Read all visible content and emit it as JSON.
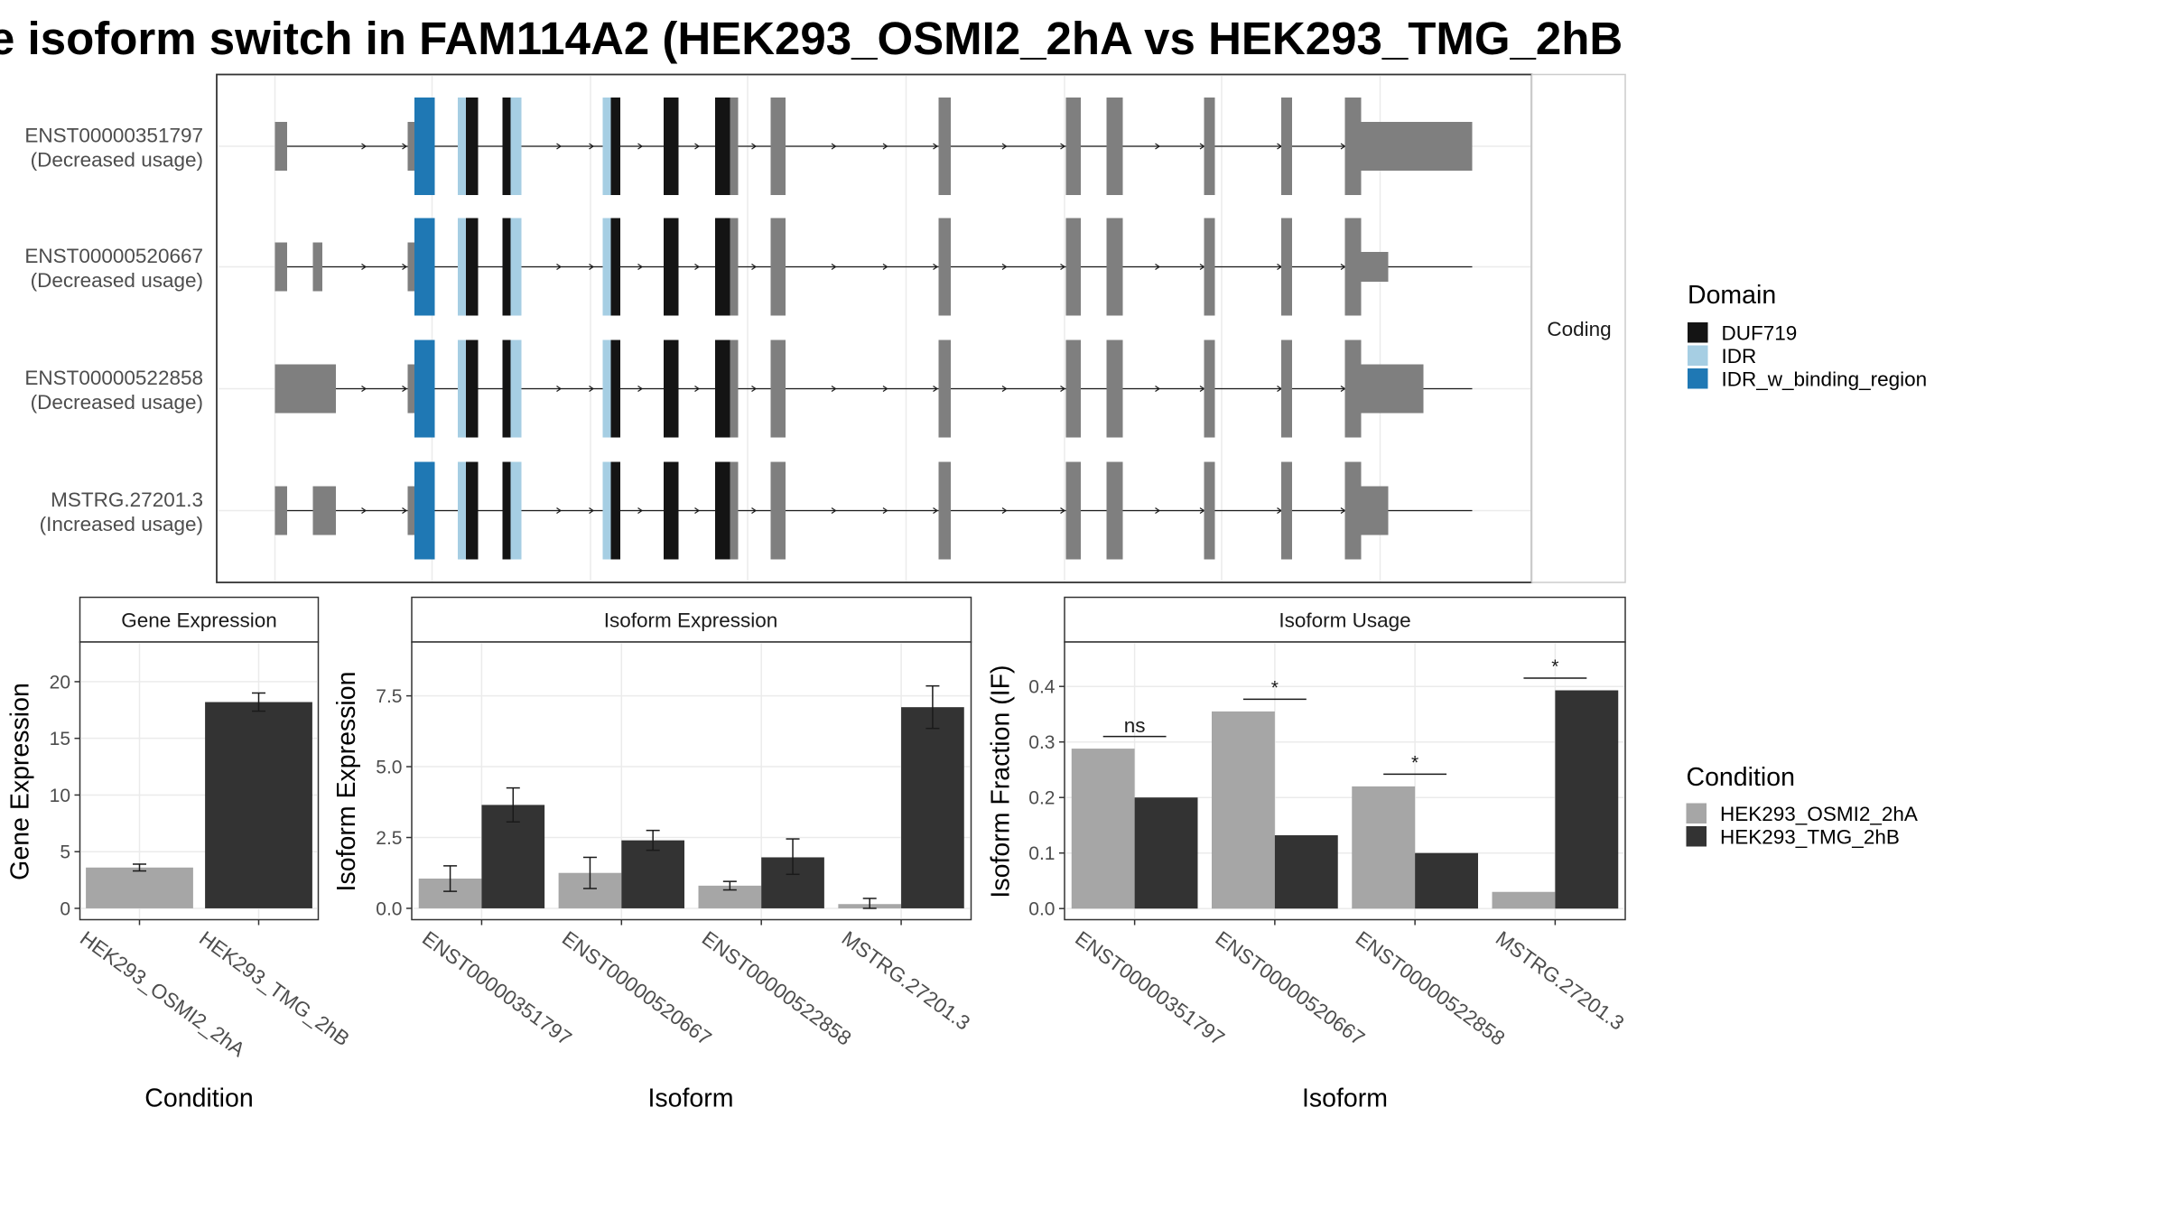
{
  "title": "e isoform switch in FAM114A2 (HEK293_OSMI2_2hA vs HEK293_TMG_2hB",
  "structure": {
    "strip_label": "Coding",
    "isoforms": [
      {
        "id": "ENST00000351797",
        "note": "(Decreased usage)"
      },
      {
        "id": "ENST00000520667",
        "note": "(Decreased usage)"
      },
      {
        "id": "ENST00000522858",
        "note": "(Decreased usage)"
      },
      {
        "id": "MSTRG.27201.3",
        "note": "(Increased usage)"
      }
    ],
    "domain_legend": {
      "title": "Domain",
      "entries": [
        {
          "label": "DUF719",
          "color": "#141414"
        },
        {
          "label": "IDR",
          "color": "#a6cee3"
        },
        {
          "label": "IDR_w_binding_region",
          "color": "#1f78b4"
        }
      ]
    }
  },
  "colors": {
    "exon": "#7f7f7f",
    "cond1": "#a6a6a6",
    "cond2": "#333333"
  },
  "condition_legend": {
    "title": "Condition",
    "entries": [
      "HEK293_OSMI2_2hA",
      "HEK293_TMG_2hB"
    ]
  },
  "chart_data": [
    {
      "type": "bar",
      "title": "Gene Expression",
      "xlabel": "Condition",
      "ylabel": "Gene Expression",
      "categories": [
        "HEK293_OSMI2_2hA",
        "HEK293_TMG_2hB"
      ],
      "values": [
        3.6,
        18.2
      ],
      "error": [
        [
          3.3,
          3.9
        ],
        [
          17.4,
          19.0
        ]
      ],
      "yticks": [
        "0",
        "5",
        "10",
        "15",
        "20"
      ],
      "ylim": [
        -1,
        23.5
      ]
    },
    {
      "type": "bar",
      "title": "Isoform Expression",
      "xlabel": "Isoform",
      "ylabel": "Isoform Expression",
      "categories": [
        "ENST00000351797",
        "ENST00000520667",
        "ENST00000522858",
        "MSTRG.27201.3"
      ],
      "series": [
        {
          "name": "HEK293_OSMI2_2hA",
          "values": [
            1.05,
            1.25,
            0.8,
            0.15
          ],
          "error": [
            [
              0.6,
              1.5
            ],
            [
              0.7,
              1.8
            ],
            [
              0.65,
              0.95
            ],
            [
              0.0,
              0.35
            ]
          ]
        },
        {
          "name": "HEK293_TMG_2hB",
          "values": [
            3.65,
            2.4,
            1.8,
            7.1
          ],
          "error": [
            [
              3.05,
              4.25
            ],
            [
              2.05,
              2.75
            ],
            [
              1.2,
              2.45
            ],
            [
              6.35,
              7.85
            ]
          ]
        }
      ],
      "yticks": [
        "0.0",
        "2.5",
        "5.0",
        "7.5"
      ],
      "ylim": [
        -0.4,
        9.4
      ]
    },
    {
      "type": "bar",
      "title": "Isoform Usage",
      "xlabel": "Isoform",
      "ylabel": "Isoform Fraction (IF)",
      "categories": [
        "ENST00000351797",
        "ENST00000520667",
        "ENST00000522858",
        "MSTRG.27201.3"
      ],
      "series": [
        {
          "name": "HEK293_OSMI2_2hA",
          "values": [
            0.288,
            0.355,
            0.22,
            0.03
          ]
        },
        {
          "name": "HEK293_TMG_2hB",
          "values": [
            0.2,
            0.132,
            0.1,
            0.393
          ]
        }
      ],
      "significance": [
        "ns",
        "*",
        "*",
        "*"
      ],
      "yticks": [
        "0.0",
        "0.1",
        "0.2",
        "0.3",
        "0.4"
      ],
      "ylim": [
        -0.02,
        0.48
      ]
    }
  ]
}
